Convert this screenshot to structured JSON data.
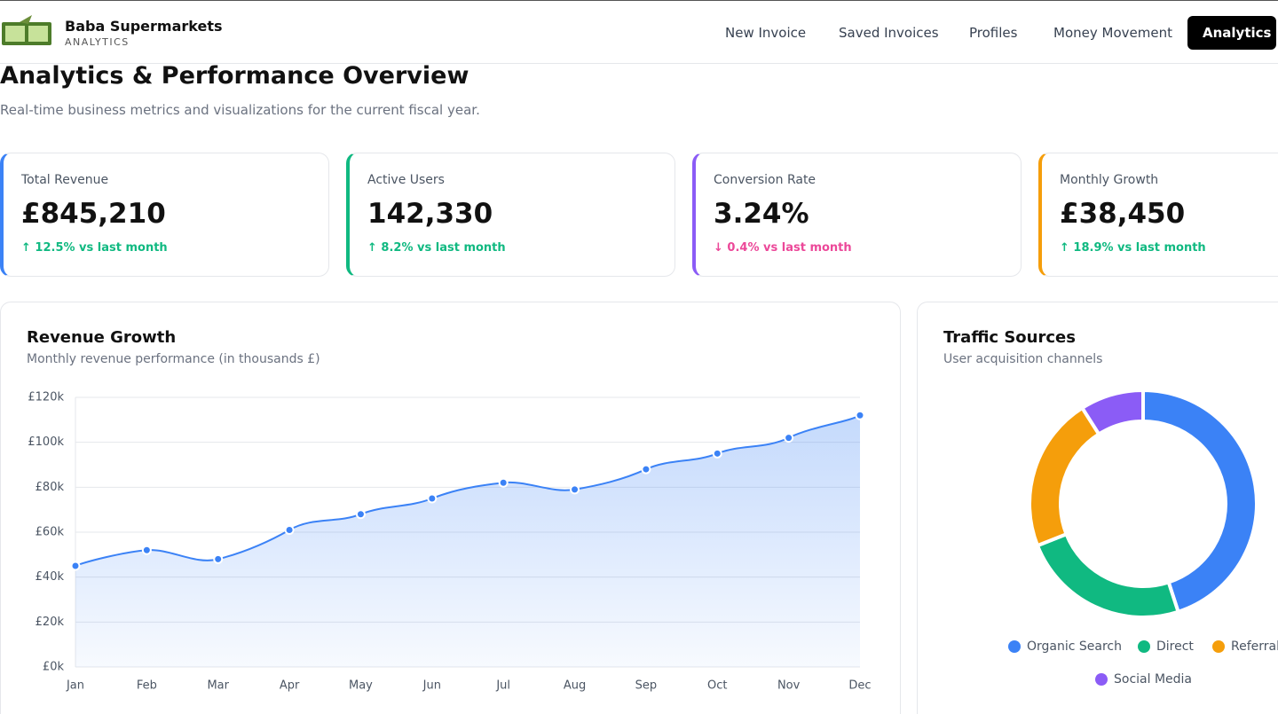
{
  "header": {
    "brand": "Baba Supermarkets",
    "tagline": "ANALYTICS"
  },
  "nav": [
    "New Invoice",
    "Saved Invoices",
    "Profiles",
    "Money Movement",
    "Analytics"
  ],
  "page": {
    "title": "Analytics & Performance Overview",
    "subtitle": "Real-time business metrics and visualizations for the current fiscal year."
  },
  "kpis": [
    {
      "label": "Total Revenue",
      "value": "£845,210",
      "change": "↑ 12.5% vs last month",
      "color": "#3b82f6",
      "change_color": "#10b981"
    },
    {
      "label": "Active Users",
      "value": "142,330",
      "change": "↑ 8.2% vs last month",
      "color": "#10b981",
      "change_color": "#10b981"
    },
    {
      "label": "Conversion Rate",
      "value": "3.24%",
      "change": "↓ 0.4% vs last month",
      "color": "#8b5cf6",
      "change_color": "#ec4899"
    },
    {
      "label": "Monthly Growth",
      "value": "£38,450",
      "change": "↑ 18.9% vs last month",
      "color": "#f59e0b",
      "change_color": "#10b981"
    }
  ],
  "chart_data": [
    {
      "type": "line",
      "title": "Revenue Growth",
      "subtitle": "Monthly revenue performance (in thousands £)",
      "categories": [
        "Jan",
        "Feb",
        "Mar",
        "Apr",
        "May",
        "Jun",
        "Jul",
        "Aug",
        "Sep",
        "Oct",
        "Nov",
        "Dec"
      ],
      "values": [
        45,
        52,
        48,
        61,
        68,
        75,
        82,
        79,
        88,
        95,
        102,
        112
      ],
      "color": "#3b82f6",
      "ylim": [
        0,
        120
      ],
      "yticks": [
        {
          "value": 0,
          "label": "£0k"
        },
        {
          "value": 20,
          "label": "£20k"
        },
        {
          "value": 40,
          "label": "£40k"
        },
        {
          "value": 60,
          "label": "£60k"
        },
        {
          "value": 80,
          "label": "£80k"
        },
        {
          "value": 100,
          "label": "£100k"
        },
        {
          "value": 120,
          "label": "£120k"
        }
      ],
      "grid": true
    },
    {
      "type": "donut",
      "title": "Traffic Sources",
      "subtitle": "User acquisition channels",
      "categories": [
        "Organic Search",
        "Direct",
        "Referral",
        "Social Media"
      ],
      "values": [
        45,
        24,
        22,
        9
      ],
      "colors": [
        "#3b82f6",
        "#10b981",
        "#f59e0b",
        "#8b5cf6"
      ]
    }
  ]
}
